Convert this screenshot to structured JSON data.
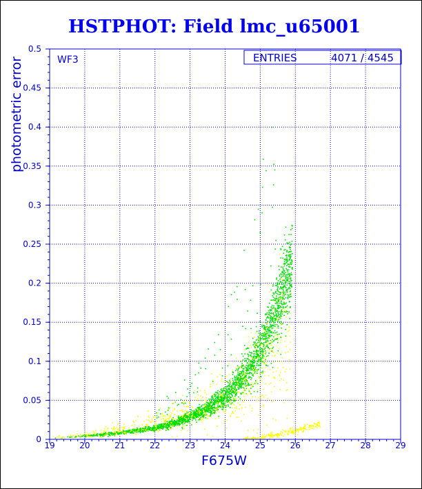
{
  "colors": {
    "axis": "#0000cc",
    "title": "#0000ee",
    "green_points": "#00dd00",
    "yellow_points": "#ffff00",
    "frame": "#000000"
  },
  "chart_data": {
    "type": "scatter",
    "title": "HSTPHOT: Field lmc_u65001",
    "xlabel": "F675W",
    "ylabel": "photometric error",
    "xlim": [
      19,
      29
    ],
    "ylim": [
      0,
      0.5
    ],
    "xticks": [
      "19",
      "20",
      "21",
      "22",
      "23",
      "24",
      "25",
      "26",
      "27",
      "28",
      "29"
    ],
    "yticks": [
      "0",
      "0.05",
      "0.1",
      "0.15",
      "0.2",
      "0.25",
      "0.3",
      "0.35",
      "0.4",
      "0.45",
      "0.5"
    ],
    "grid": true,
    "panel_label": "WF3",
    "stats": {
      "label": "ENTRIES",
      "value": "4071 / 4545"
    },
    "series": [
      {
        "color": "green",
        "trend_x": [
          19.0,
          20.0,
          21.0,
          22.0,
          22.5,
          23.0,
          23.5,
          24.0,
          24.5,
          25.0,
          25.4,
          25.8
        ],
        "trend_y": [
          0.002,
          0.005,
          0.009,
          0.015,
          0.021,
          0.029,
          0.04,
          0.056,
          0.08,
          0.115,
          0.16,
          0.215
        ]
      },
      {
        "color": "yellow",
        "trend_x": [
          19.0,
          20.0,
          21.0,
          22.0,
          22.5,
          23.0,
          23.5,
          24.0,
          24.5,
          25.0,
          25.4,
          25.8
        ],
        "trend_y": [
          0.002,
          0.006,
          0.012,
          0.021,
          0.027,
          0.034,
          0.043,
          0.054,
          0.068,
          0.09,
          0.11,
          0.135
        ]
      }
    ]
  }
}
